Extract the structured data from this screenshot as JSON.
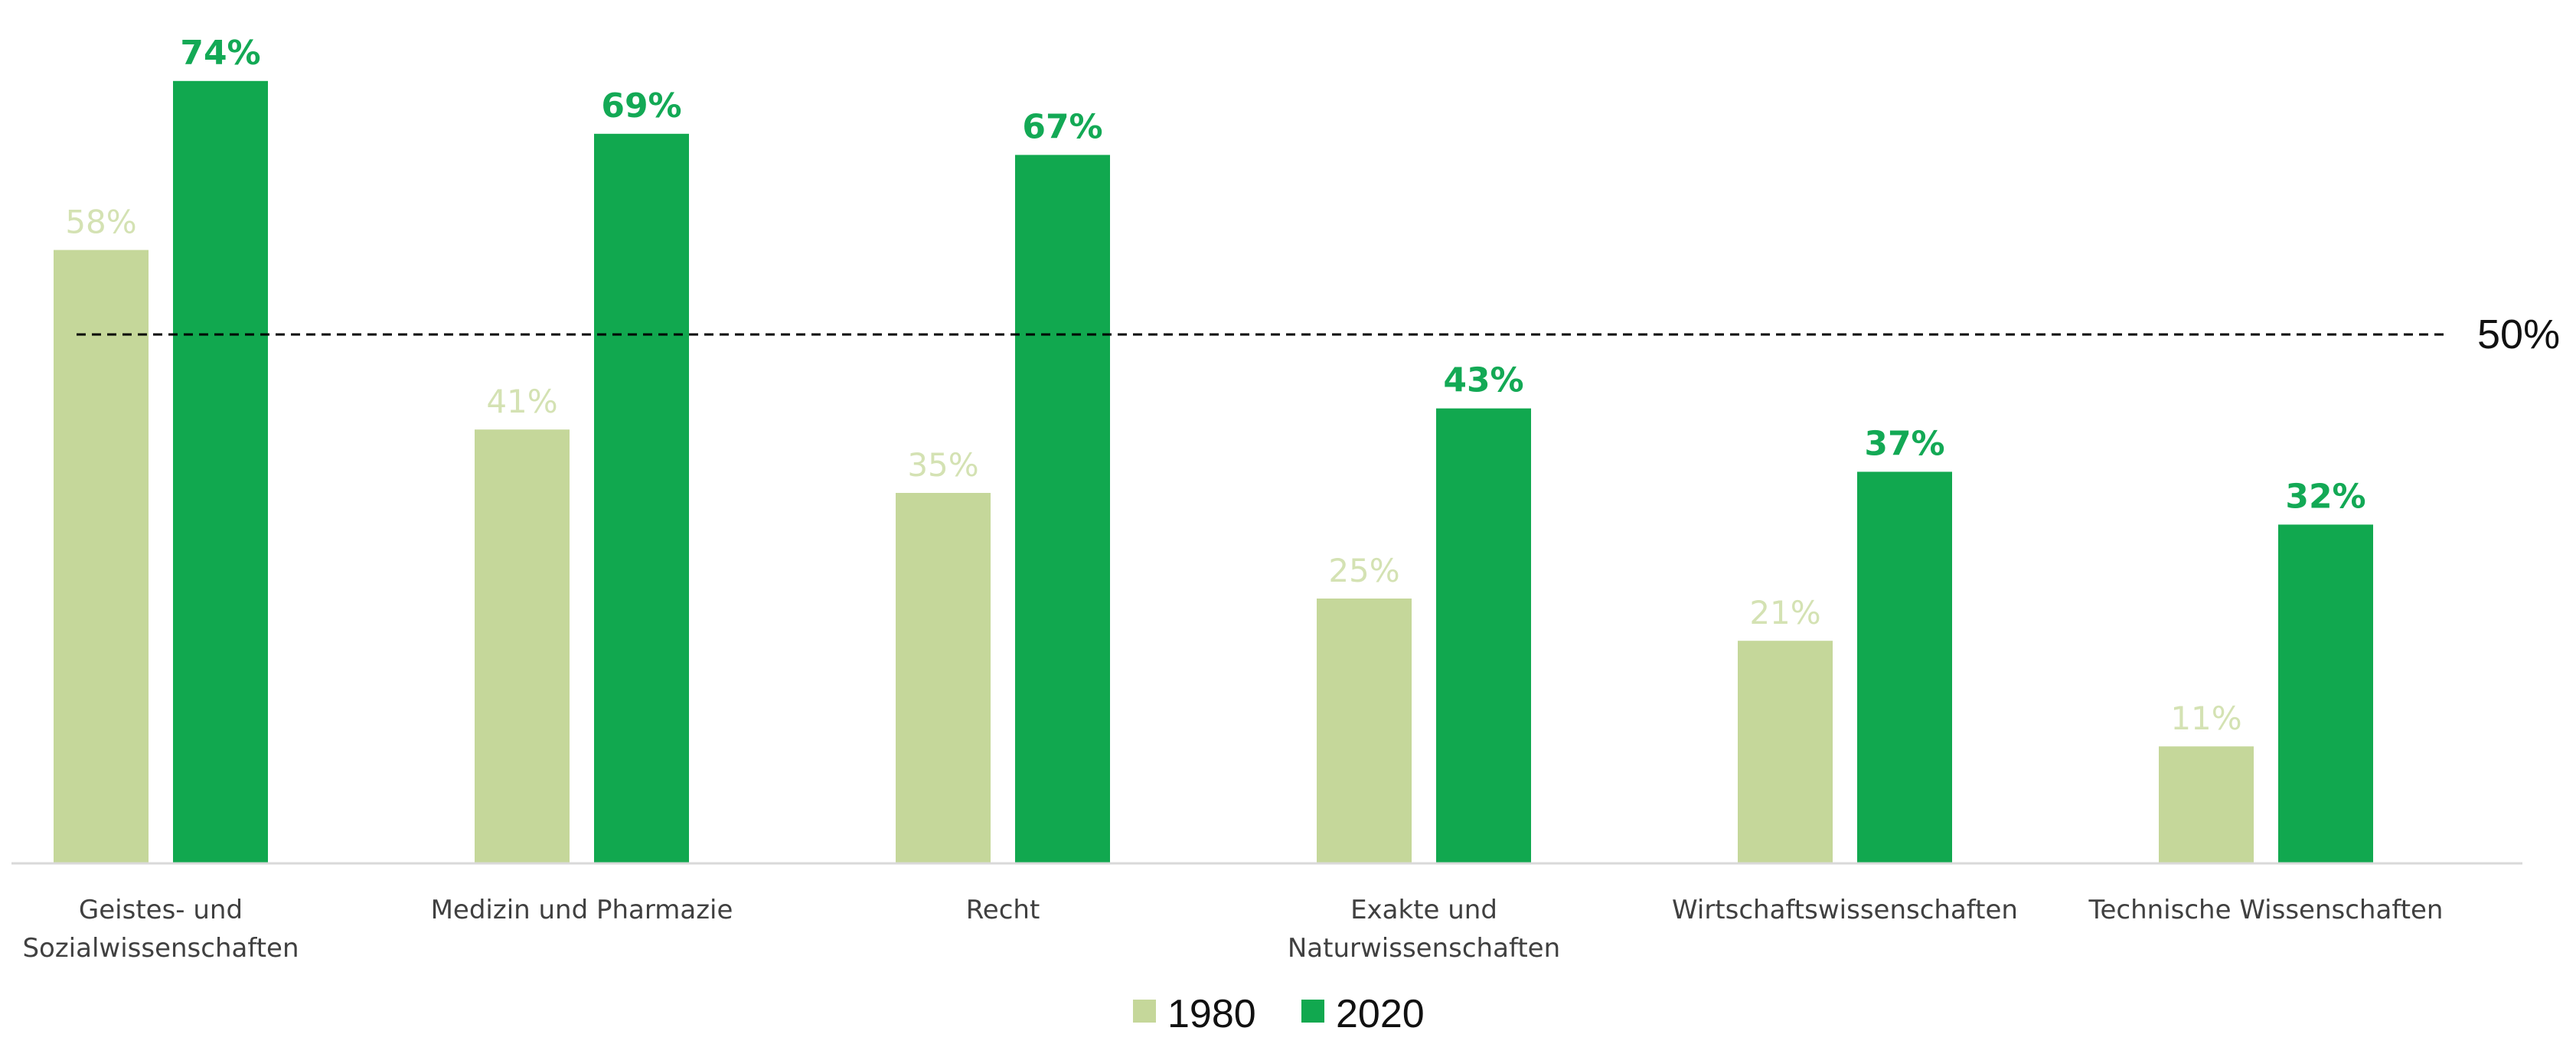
{
  "chart_data": {
    "type": "bar",
    "title": "",
    "xlabel": "",
    "ylabel": "",
    "ylim": [
      0,
      80
    ],
    "grid": false,
    "legend_position": "bottom-center",
    "categories": [
      [
        "Geistes- und",
        "Sozialwissenschaften"
      ],
      [
        "Medizin und Pharmazie"
      ],
      [
        "Recht"
      ],
      [
        "Exakte und",
        "Naturwissenschaften"
      ],
      [
        "Wirtschaftswissenschaften"
      ],
      [
        "Technische Wissenschaften"
      ]
    ],
    "series": [
      {
        "name": "1980",
        "color": "#c5d79a",
        "label_color": "#d4e2b3",
        "values": [
          58,
          41,
          35,
          25,
          21,
          11
        ],
        "labels": [
          "58%",
          "41%",
          "35%",
          "25%",
          "21%",
          "11%"
        ]
      },
      {
        "name": "2020",
        "color": "#11a84f",
        "label_color": "#13a955",
        "values": [
          74,
          69,
          67,
          43,
          37,
          32
        ],
        "labels": [
          "74%",
          "69%",
          "67%",
          "43%",
          "37%",
          "32%"
        ]
      }
    ],
    "reference_line": {
      "value": 50,
      "label": "50%",
      "style": "dashed",
      "color": "#000000"
    },
    "axis_color": "#d9d9d9"
  }
}
